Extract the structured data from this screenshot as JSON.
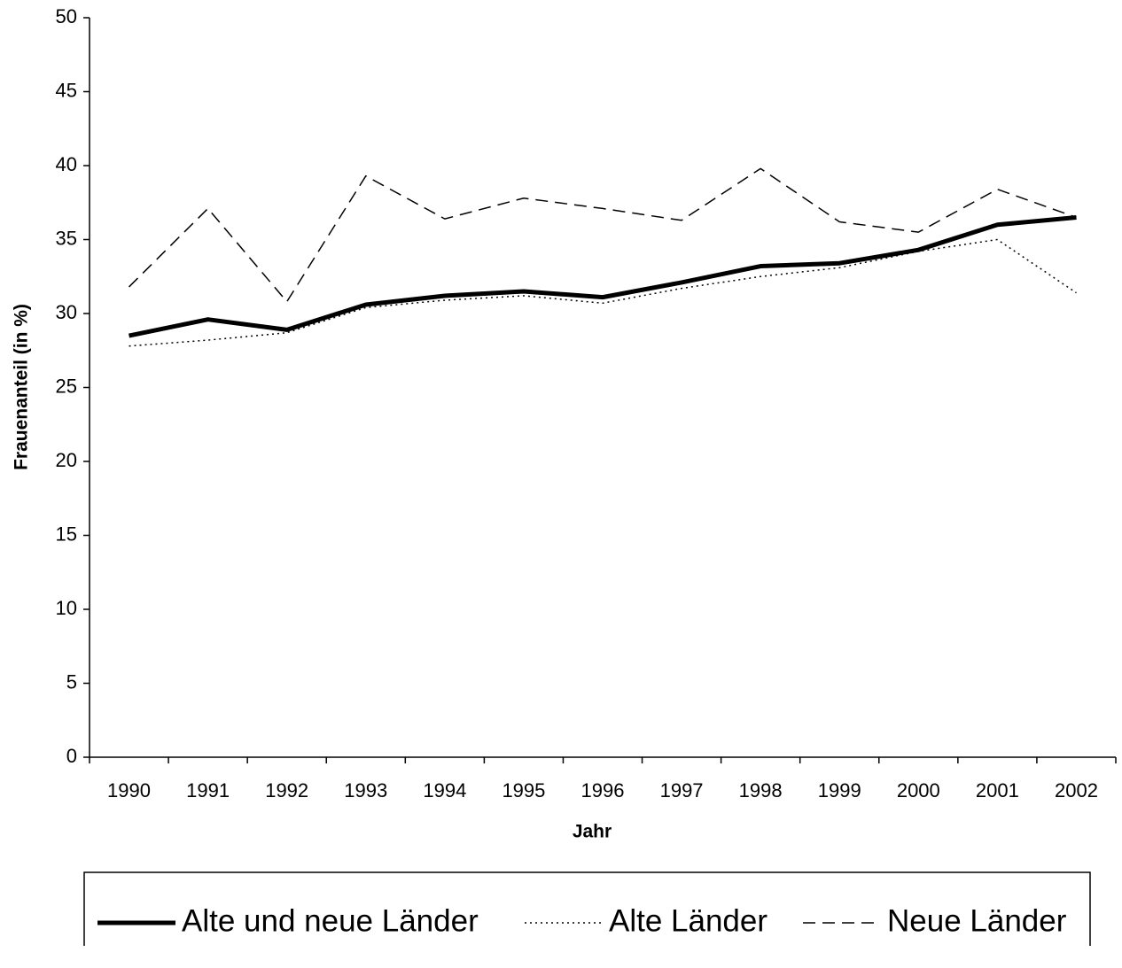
{
  "chart_data": {
    "type": "line",
    "xlabel": "Jahr",
    "ylabel": "Frauenanteil (in %)",
    "categories": [
      "1990",
      "1991",
      "1992",
      "1993",
      "1994",
      "1995",
      "1996",
      "1997",
      "1998",
      "1999",
      "2000",
      "2001",
      "2002"
    ],
    "series": [
      {
        "name": "Alte und neue Länder",
        "color": "#000000",
        "style": "solid",
        "values": [
          28.5,
          29.6,
          28.9,
          30.6,
          31.2,
          31.5,
          31.1,
          32.1,
          33.2,
          33.4,
          34.3,
          36.0,
          36.5
        ]
      },
      {
        "name": "Alte Länder",
        "color": "#000000",
        "style": "dotted",
        "values": [
          27.8,
          28.2,
          28.7,
          30.4,
          30.9,
          31.2,
          30.7,
          31.7,
          32.5,
          33.1,
          34.2,
          35.0,
          31.4
        ]
      },
      {
        "name": "Neue Länder",
        "color": "#000000",
        "style": "dashed",
        "values": [
          31.8,
          37.1,
          30.8,
          39.3,
          36.4,
          37.8,
          37.1,
          36.3,
          39.8,
          36.2,
          35.5,
          38.4,
          36.5
        ]
      }
    ],
    "ylim": [
      0,
      50
    ],
    "yticks": [
      0,
      5,
      10,
      15,
      20,
      25,
      30,
      35,
      40,
      45,
      50
    ],
    "grid": false,
    "legend": "bottom"
  }
}
